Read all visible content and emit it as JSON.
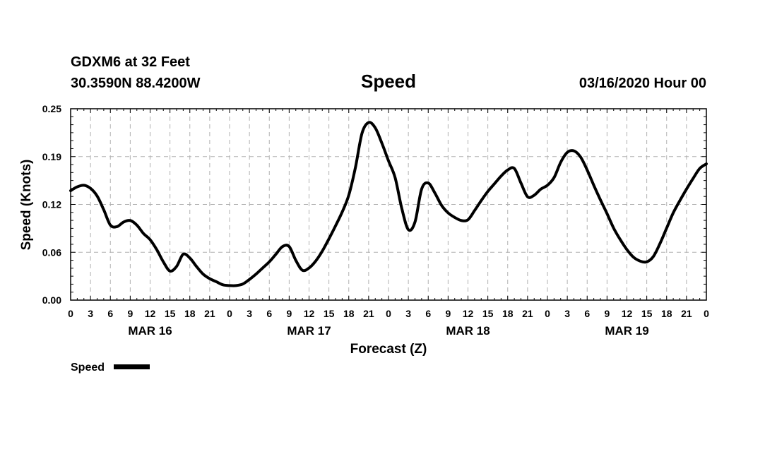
{
  "header": {
    "station": "GDXM6 at 32 Feet",
    "location": "30.3590N 88.4200W",
    "title": "Speed",
    "run": "03/16/2020 Hour 00"
  },
  "legend": {
    "label": "Speed"
  },
  "chart_data": {
    "type": "line",
    "title": "Speed",
    "xlabel": "Forecast (Z)",
    "ylabel": "Speed (Knots)",
    "ylim": [
      0,
      0.25
    ],
    "xlim": [
      0,
      96
    ],
    "grid": true,
    "legend_position": "bottom-left",
    "y_ticks": [
      "0.00",
      "0.06",
      "0.12",
      "0.19",
      "0.25"
    ],
    "y_tick_values": [
      0,
      0.0625,
      0.125,
      0.1875,
      0.25
    ],
    "x_tick_hours": [
      0,
      3,
      6,
      9,
      12,
      15,
      18,
      21,
      24,
      27,
      30,
      33,
      36,
      39,
      42,
      45,
      48,
      51,
      54,
      57,
      60,
      63,
      66,
      69,
      72,
      75,
      78,
      81,
      84,
      87,
      90,
      93,
      96
    ],
    "x_tick_labels": [
      "0",
      "3",
      "6",
      "9",
      "12",
      "15",
      "18",
      "21",
      "0",
      "3",
      "6",
      "9",
      "12",
      "15",
      "18",
      "21",
      "0",
      "3",
      "6",
      "9",
      "12",
      "15",
      "18",
      "21",
      "0",
      "3",
      "6",
      "9",
      "12",
      "15",
      "18",
      "21",
      "0"
    ],
    "day_labels": [
      {
        "label": "MAR 16",
        "hour": 12
      },
      {
        "label": "MAR 17",
        "hour": 36
      },
      {
        "label": "MAR 18",
        "hour": 60
      },
      {
        "label": "MAR 19",
        "hour": 84
      }
    ],
    "series": [
      {
        "name": "Speed",
        "color": "#000000",
        "x": [
          0,
          1,
          2,
          3,
          4,
          5,
          6,
          7,
          8,
          9,
          10,
          11,
          12,
          13,
          14,
          15,
          16,
          17,
          18,
          19,
          20,
          21,
          22,
          23,
          24,
          25,
          26,
          27,
          28,
          29,
          30,
          31,
          32,
          33,
          34,
          35,
          36,
          37,
          38,
          39,
          40,
          41,
          42,
          43,
          44,
          45,
          46,
          47,
          48,
          49,
          50,
          51,
          52,
          53,
          54,
          55,
          56,
          57,
          58,
          59,
          60,
          61,
          62,
          63,
          64,
          65,
          66,
          67,
          68,
          69,
          70,
          71,
          72,
          73,
          74,
          75,
          76,
          77,
          78,
          79,
          80,
          81,
          82,
          83,
          84,
          85,
          86,
          87,
          88,
          89,
          90,
          91,
          92,
          93,
          94,
          95,
          96
        ],
        "values": [
          0.143,
          0.148,
          0.15,
          0.146,
          0.136,
          0.118,
          0.098,
          0.096,
          0.102,
          0.104,
          0.098,
          0.087,
          0.079,
          0.066,
          0.05,
          0.038,
          0.044,
          0.06,
          0.055,
          0.044,
          0.034,
          0.028,
          0.024,
          0.02,
          0.019,
          0.019,
          0.021,
          0.027,
          0.034,
          0.042,
          0.05,
          0.06,
          0.07,
          0.07,
          0.052,
          0.039,
          0.042,
          0.051,
          0.064,
          0.08,
          0.097,
          0.115,
          0.137,
          0.173,
          0.218,
          0.232,
          0.225,
          0.205,
          0.182,
          0.16,
          0.12,
          0.092,
          0.102,
          0.145,
          0.153,
          0.14,
          0.124,
          0.114,
          0.108,
          0.104,
          0.105,
          0.117,
          0.13,
          0.142,
          0.152,
          0.162,
          0.17,
          0.172,
          0.153,
          0.135,
          0.137,
          0.145,
          0.15,
          0.16,
          0.18,
          0.193,
          0.195,
          0.187,
          0.17,
          0.15,
          0.131,
          0.113,
          0.094,
          0.079,
          0.066,
          0.056,
          0.051,
          0.05,
          0.057,
          0.074,
          0.094,
          0.114,
          0.13,
          0.145,
          0.159,
          0.172,
          0.178
        ]
      }
    ]
  }
}
